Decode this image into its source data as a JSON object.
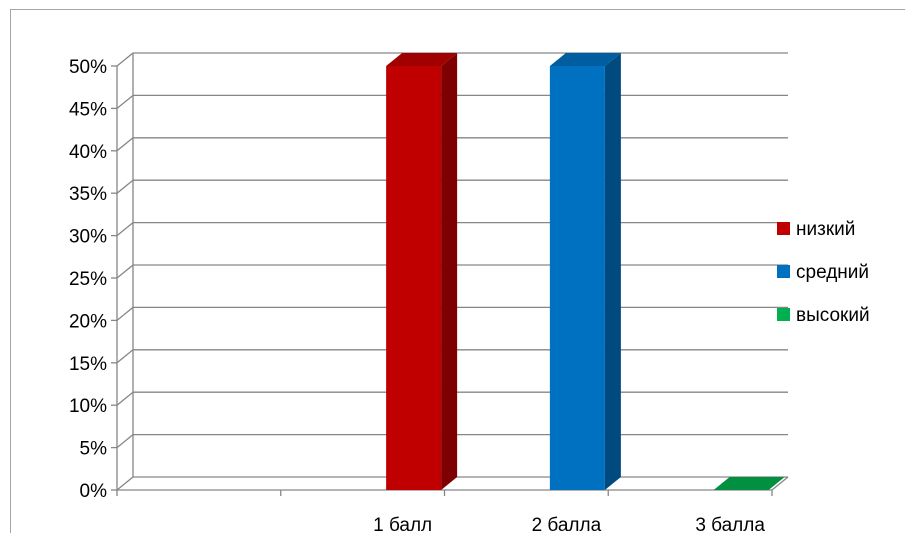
{
  "chart_data": {
    "type": "bar",
    "title": "",
    "xlabel": "",
    "ylabel": "",
    "categories": [
      "",
      "1 балл",
      "2 балла",
      "3 балла"
    ],
    "ylim": [
      0,
      50
    ],
    "y_ticks": [
      "0%",
      "5%",
      "10%",
      "15%",
      "20%",
      "25%",
      "30%",
      "35%",
      "40%",
      "45%",
      "50%"
    ],
    "grid": true,
    "legend_position": "right",
    "series": [
      {
        "name": "низкий",
        "color": "#c00000",
        "side_color": "#7f0000",
        "top_color": "#a00000",
        "values": [
          0,
          50,
          0,
          0
        ]
      },
      {
        "name": "средний",
        "color": "#0070c0",
        "side_color": "#004a80",
        "top_color": "#005da0",
        "values": [
          0,
          0,
          50,
          0
        ]
      },
      {
        "name": "высокий",
        "color": "#00b050",
        "side_color": "#007535",
        "top_color": "#009040",
        "values": [
          0,
          0,
          0,
          0
        ]
      }
    ]
  }
}
